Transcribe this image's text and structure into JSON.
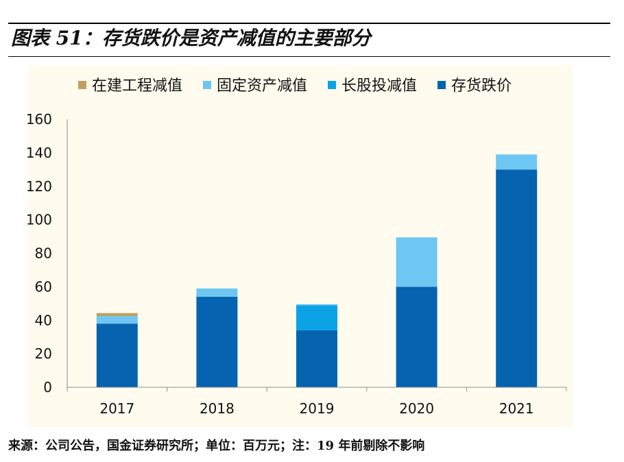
{
  "figure": {
    "title": "图表 51：存货跌价是资产减值的主要部分",
    "source_note": "来源：公司公告，国金证券研究所；单位：百万元；注：19 年前剔除不影响"
  },
  "chart_data": {
    "type": "bar",
    "stacked": true,
    "categories": [
      "2017",
      "2018",
      "2019",
      "2020",
      "2021"
    ],
    "series": [
      {
        "name": "存货跌价",
        "color": "#0563b0",
        "values": [
          38,
          54,
          34,
          60,
          130
        ]
      },
      {
        "name": "长股投减值",
        "color": "#0ba3e6",
        "values": [
          0,
          0,
          15,
          0,
          0
        ]
      },
      {
        "name": "固定资产减值",
        "color": "#6dc7f2",
        "values": [
          4.5,
          5,
          0.6,
          29.5,
          9
        ]
      },
      {
        "name": "在建工程减值",
        "color": "#c0a060",
        "values": [
          1.8,
          0,
          0,
          0,
          0
        ]
      }
    ],
    "legend_order": [
      "在建工程减值",
      "固定资产减值",
      "长股投减值",
      "存货跌价"
    ],
    "legend_position": "top",
    "ylim": [
      0,
      160
    ],
    "yticks": [
      0,
      20,
      40,
      60,
      80,
      100,
      120,
      140,
      160
    ],
    "xlabel": "",
    "ylabel": "",
    "grid": false
  }
}
